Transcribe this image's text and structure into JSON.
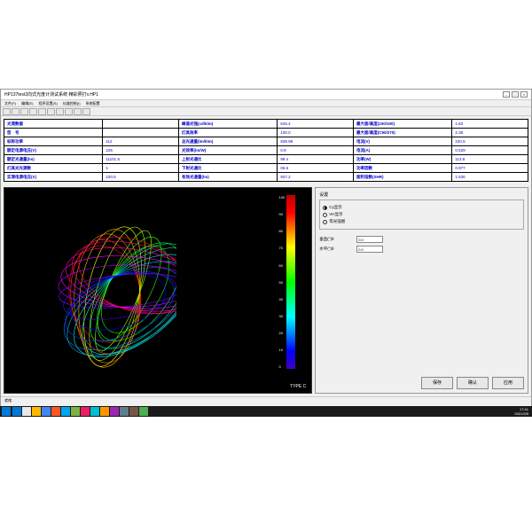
{
  "window": {
    "title": "HP137test2向式光度计测试系统·精彩照打v.HP1"
  },
  "menu": [
    "文件(F)",
    "编辑(E)",
    "程序设置(S)",
    "仪器控制(I)",
    "系统配置"
  ],
  "table": {
    "rows": [
      [
        {
          "l": "光测数据",
          "v": ""
        },
        {
          "l": "峰值光强(cd/klm)",
          "v": "645.4"
        },
        {
          "l": "最大面/高度(100/100)",
          "v": "1.83"
        }
      ],
      [
        {
          "l": "型　号",
          "v": ""
        },
        {
          "l": "灯具效率",
          "v": "100.0"
        },
        {
          "l": "最大面/高度(C90/270)",
          "v": "2.38"
        }
      ],
      [
        {
          "l": "标称功率",
          "v": "112"
        },
        {
          "l": "总光通量(lm/klm)",
          "v": "839.98"
        },
        {
          "l": "电流(V)",
          "v": "220.5"
        }
      ],
      [
        {
          "l": "额定电源电压(V)",
          "v": "225"
        },
        {
          "l": "光效率(lm/W)",
          "v": "0.9"
        },
        {
          "l": "电流(A)",
          "v": "0.529"
        }
      ],
      [
        {
          "l": "额定光通量(lm)",
          "v": "11101.5"
        },
        {
          "l": "上射光通比",
          "v": "99.4"
        },
        {
          "l": "功率(W)",
          "v": "113.8"
        }
      ],
      [
        {
          "l": "灯具光光源数",
          "v": "1"
        },
        {
          "l": "下射光通比",
          "v": "06.6"
        },
        {
          "l": "功率因数",
          "v": "0.977"
        }
      ],
      [
        {
          "l": "实测电源电压(V)",
          "v": "220.5"
        },
        {
          "l": "有效光通量(lm)",
          "v": "937.2"
        },
        {
          "l": "面积指数(SHR)",
          "v": "1.536"
        }
      ]
    ]
  },
  "scale": {
    "top": "100%",
    "ticks": [
      "100",
      "90",
      "80",
      "70",
      "60",
      "50",
      "40",
      "30",
      "20",
      "10",
      "0"
    ]
  },
  "typec": "TYPE C",
  "panel": {
    "group": "设置",
    "radios": [
      {
        "label": "Cγ显示",
        "on": true
      },
      {
        "label": "VH显示",
        "on": false
      },
      {
        "label": "等光强图",
        "on": false
      }
    ],
    "inputs": [
      {
        "label": "垂直(°)θ",
        "value": "0.0"
      },
      {
        "label": "水平(°)θ",
        "value": "0.0"
      }
    ],
    "buttons": [
      "保存",
      "确认",
      "应用"
    ]
  },
  "taskbar": {
    "icons": [
      "#0078d7",
      "#e8e8e8",
      "#ffb900",
      "#4285f4",
      "#ff5722",
      "#00a4ef",
      "#7cb342",
      "#e91e63",
      "#00bcd4",
      "#ff9800",
      "#9c27b0",
      "#607d8b",
      "#795548",
      "#4caf50"
    ],
    "time": "17:41",
    "date": "2021/3/5"
  },
  "spiro": {
    "colors": [
      "#ff0000",
      "#ff4000",
      "#ff8000",
      "#ffc000",
      "#ffff00",
      "#c0ff00",
      "#80ff00",
      "#40ff00",
      "#00ff00",
      "#00ff40",
      "#00ff80",
      "#00ffc0",
      "#00ffff",
      "#00c0ff",
      "#0080ff",
      "#0040ff",
      "#0000ff",
      "#4000ff",
      "#8000ff",
      "#c000ff",
      "#ff00ff",
      "#ff00c0",
      "#ff0080",
      "#ff0040"
    ]
  }
}
